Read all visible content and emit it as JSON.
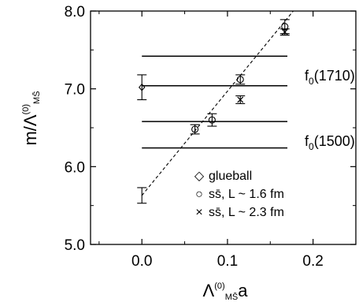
{
  "chart_data": {
    "type": "scatter",
    "xlabel": "Λ(0)MS̄ a",
    "ylabel": "m/Λ(0)MS̄",
    "xlim": [
      -0.06,
      0.25
    ],
    "ylim": [
      5.0,
      8.0
    ],
    "x_ticks": [
      "0.0",
      "0.1",
      "0.2"
    ],
    "x_tick_values": [
      0.0,
      0.1,
      0.2
    ],
    "y_ticks": [
      "5.0",
      "6.0",
      "7.0",
      "8.0"
    ],
    "y_tick_values": [
      5.0,
      6.0,
      7.0,
      8.0
    ],
    "series": [
      {
        "name": "glueball",
        "marker": "diamond",
        "points": [
          {
            "x": 0.0,
            "y": 7.02,
            "err": 0.16
          }
        ]
      },
      {
        "name": "ss̄, L ~ 1.6 fm",
        "marker": "circle",
        "points": [
          {
            "x": 0.062,
            "y": 6.48,
            "err": 0.06
          },
          {
            "x": 0.082,
            "y": 6.6,
            "err": 0.08
          },
          {
            "x": 0.115,
            "y": 7.12,
            "err": 0.06
          },
          {
            "x": 0.167,
            "y": 7.8,
            "err": 0.09
          }
        ]
      },
      {
        "name": "ss̄, L ~ 2.3 fm",
        "marker": "x",
        "points": [
          {
            "x": 0.115,
            "y": 6.86,
            "err": 0.05
          },
          {
            "x": 0.167,
            "y": 7.73,
            "err": 0.04
          }
        ]
      }
    ],
    "continuum_point": {
      "x": 0.0,
      "y": 5.63,
      "err": 0.1
    },
    "fit_line": {
      "x0": 0.0,
      "y0": 5.63,
      "slope": 13.4
    },
    "horizontal_lines": [
      {
        "y": 7.42,
        "label": ""
      },
      {
        "y": 7.04,
        "label": "f0(1710)"
      },
      {
        "y": 6.58,
        "label": ""
      },
      {
        "y": 6.24,
        "label": "f0(1500)"
      }
    ],
    "hline_x_range": [
      0.0,
      0.17
    ],
    "band_labels": [
      {
        "text": "f",
        "sub": "0",
        "rest": "(1710)",
        "y": 7.17
      },
      {
        "text": "f",
        "sub": "0",
        "rest": "(1500)",
        "y": 6.33
      }
    ],
    "legend": [
      {
        "symbol": "◇",
        "label": "glueball"
      },
      {
        "symbol": "○",
        "label": "ss̄, L ~ 1.6 fm"
      },
      {
        "symbol": "×",
        "label": "ss̄, L ~ 2.3 fm"
      }
    ]
  }
}
